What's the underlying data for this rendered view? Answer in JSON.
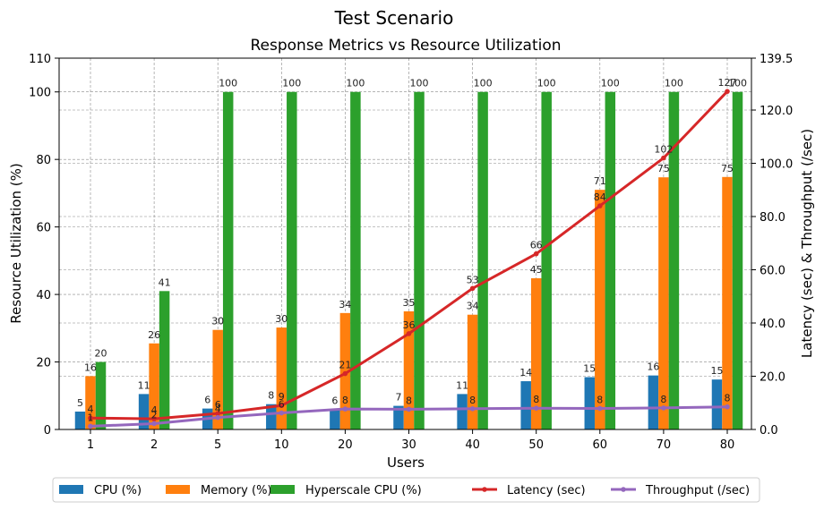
{
  "chart_data": {
    "type": "bar",
    "suptitle": "Test Scenario",
    "title": "Response Metrics vs Resource Utilization",
    "xlabel": "Users",
    "ylabel_left": "Resource Utilization (%)",
    "ylabel_right": "Latency (sec) & Throughput (/sec)",
    "categories": [
      "1",
      "2",
      "5",
      "10",
      "20",
      "30",
      "40",
      "50",
      "60",
      "70",
      "80"
    ],
    "ylim_left": [
      0,
      110
    ],
    "ylim_right": [
      0,
      139.5
    ],
    "yticks_left": [
      "0",
      "20",
      "40",
      "60",
      "80",
      "100",
      "110"
    ],
    "yticks_right": [
      "0.0",
      "20.0",
      "40.0",
      "60.0",
      "80.0",
      "100.0",
      "120.0",
      "139.5"
    ],
    "grid": true,
    "legend_position": "bottom",
    "series": [
      {
        "name": "CPU (%)",
        "kind": "bar",
        "axis": "left",
        "color": "#1f77b4",
        "values": [
          5.3,
          10.5,
          6.2,
          7.5,
          6.0,
          7.0,
          10.5,
          14.3,
          15.5,
          16.0,
          14.8
        ],
        "labels": [
          "5",
          "11",
          "6",
          "8",
          "6",
          "7",
          "11",
          "14",
          "15",
          "16",
          "15"
        ]
      },
      {
        "name": "Memory (%)",
        "kind": "bar",
        "axis": "left",
        "color": "#ff7f0e",
        "values": [
          15.8,
          25.5,
          29.5,
          30.2,
          34.5,
          35.0,
          34.0,
          44.8,
          71.0,
          74.7,
          74.8
        ],
        "labels": [
          "16",
          "26",
          "30",
          "30",
          "34",
          "35",
          "34",
          "45",
          "71",
          "75",
          "75"
        ]
      },
      {
        "name": "Hyperscale CPU (%)",
        "kind": "bar",
        "axis": "left",
        "color": "#2ca02c",
        "values": [
          20,
          41,
          100,
          100,
          100,
          100,
          100,
          100,
          100,
          100,
          100
        ],
        "labels": [
          "20",
          "41",
          "100",
          "100",
          "100",
          "100",
          "100",
          "100",
          "100",
          "100",
          "100"
        ]
      },
      {
        "name": "Latency (sec)",
        "kind": "line",
        "axis": "right",
        "color": "#d62728",
        "values": [
          4.3,
          4.0,
          6.0,
          9.0,
          21.0,
          36.0,
          53.0,
          66.0,
          84.0,
          102.0,
          127.0
        ],
        "labels": [
          "4",
          "4",
          "6",
          "9",
          "21",
          "36",
          "53",
          "66",
          "84",
          "102",
          "127"
        ]
      },
      {
        "name": "Throughput (/sec)",
        "kind": "line",
        "axis": "right",
        "color": "#9467bd",
        "values": [
          1.2,
          2.2,
          4.5,
          6.2,
          7.7,
          7.6,
          7.8,
          8.0,
          7.9,
          8.1,
          8.5
        ],
        "labels": [
          "1",
          "2",
          "4",
          "6",
          "8",
          "8",
          "8",
          "8",
          "8",
          "8",
          "8"
        ]
      }
    ]
  }
}
